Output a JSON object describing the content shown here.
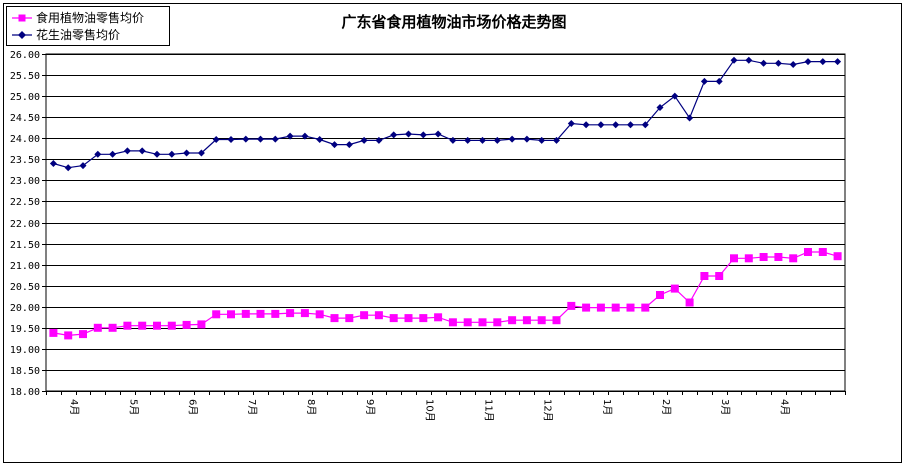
{
  "chart_data": {
    "type": "line",
    "title": "广东省食用植物油市场价格走势图",
    "xlabel": "",
    "ylabel": "",
    "ylim": [
      18.0,
      26.0
    ],
    "ytick_step": 0.5,
    "grid": true,
    "legend_position": "top-left",
    "month_labels": [
      "4月",
      "5月",
      "6月",
      "7月",
      "8月",
      "9月",
      "10月",
      "11月",
      "12月",
      "1月",
      "2月",
      "3月",
      "4月"
    ],
    "month_label_index": [
      1,
      5,
      9,
      13,
      17,
      21,
      25,
      29,
      33,
      37,
      41,
      45,
      49
    ],
    "series": [
      {
        "name": "食用植物油零售均价",
        "marker": "square",
        "color": "#ff00ff",
        "values": [
          19.38,
          19.32,
          19.35,
          19.5,
          19.5,
          19.55,
          19.55,
          19.55,
          19.55,
          19.57,
          19.58,
          19.82,
          19.82,
          19.83,
          19.83,
          19.83,
          19.85,
          19.85,
          19.82,
          19.73,
          19.73,
          19.8,
          19.8,
          19.73,
          19.73,
          19.73,
          19.75,
          19.63,
          19.63,
          19.63,
          19.63,
          19.68,
          19.68,
          19.68,
          19.68,
          20.02,
          19.98,
          19.98,
          19.98,
          19.98,
          19.98,
          20.28,
          20.43,
          20.1,
          20.73,
          20.73,
          21.15,
          21.15,
          21.18,
          21.18,
          21.15,
          21.3,
          21.3,
          21.2
        ]
      },
      {
        "name": "花生油零售均价",
        "marker": "diamond",
        "color": "#000080",
        "values": [
          23.4,
          23.3,
          23.35,
          23.62,
          23.62,
          23.7,
          23.7,
          23.62,
          23.62,
          23.65,
          23.65,
          23.97,
          23.97,
          23.98,
          23.98,
          23.98,
          24.05,
          24.05,
          23.97,
          23.85,
          23.85,
          23.95,
          23.95,
          24.08,
          24.1,
          24.08,
          24.1,
          23.95,
          23.95,
          23.95,
          23.95,
          23.98,
          23.98,
          23.95,
          23.95,
          24.35,
          24.32,
          24.32,
          24.32,
          24.32,
          24.32,
          24.73,
          25.0,
          24.48,
          25.35,
          25.35,
          25.85,
          25.85,
          25.78,
          25.78,
          25.75,
          25.82,
          25.82,
          25.82
        ]
      }
    ]
  }
}
